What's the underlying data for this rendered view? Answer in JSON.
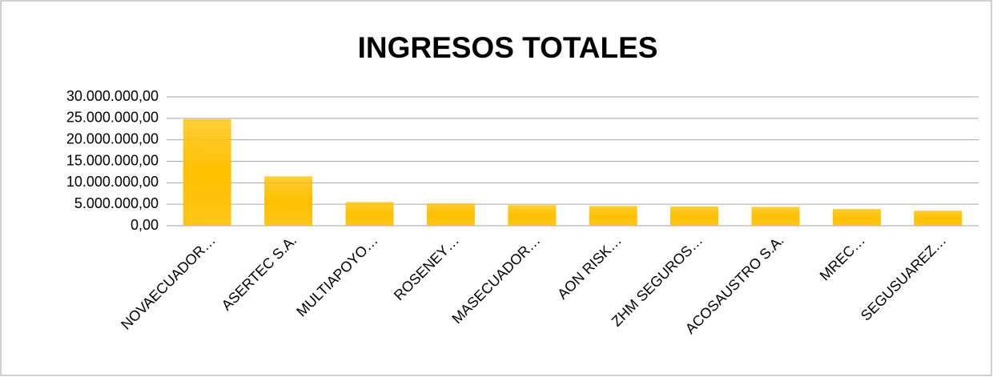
{
  "chart_data": {
    "type": "bar",
    "title": "INGRESOS TOTALES",
    "categories": [
      "NOVAECUADOR…",
      "ASERTEC S.A.",
      "MULTIAPOYO…",
      "ROSENEY…",
      "MASECUADOR…",
      "AON RISK…",
      "ZHM SEGUROS…",
      "ACOSAUSTRO S.A.",
      "MREC…",
      "SEGUSUAREZ…"
    ],
    "values": [
      24800000,
      11500000,
      5500000,
      5200000,
      4800000,
      4600000,
      4500000,
      4400000,
      3900000,
      3500000
    ],
    "color": "#ffc000",
    "ylim": [
      0,
      30000000
    ],
    "yticks": [
      {
        "value": 0,
        "label": "0,00"
      },
      {
        "value": 5000000,
        "label": "5.000.000,00"
      },
      {
        "value": 10000000,
        "label": "10.000.000,00"
      },
      {
        "value": 15000000,
        "label": "15.000.000,00"
      },
      {
        "value": 20000000,
        "label": "20.000.000,00"
      },
      {
        "value": 25000000,
        "label": "25.000.000,00"
      },
      {
        "value": 30000000,
        "label": "30.000.000,00"
      }
    ],
    "grid": true
  }
}
